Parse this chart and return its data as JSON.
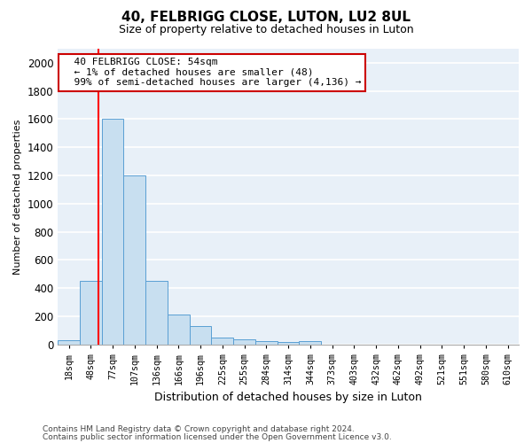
{
  "title": "40, FELBRIGG CLOSE, LUTON, LU2 8UL",
  "subtitle": "Size of property relative to detached houses in Luton",
  "xlabel": "Distribution of detached houses by size in Luton",
  "ylabel": "Number of detached properties",
  "categories": [
    "18sqm",
    "48sqm",
    "77sqm",
    "107sqm",
    "136sqm",
    "166sqm",
    "196sqm",
    "225sqm",
    "255sqm",
    "284sqm",
    "314sqm",
    "344sqm",
    "373sqm",
    "403sqm",
    "432sqm",
    "462sqm",
    "492sqm",
    "521sqm",
    "551sqm",
    "580sqm",
    "610sqm"
  ],
  "values": [
    30,
    450,
    1600,
    1200,
    450,
    210,
    130,
    50,
    35,
    20,
    15,
    20,
    0,
    0,
    0,
    0,
    0,
    0,
    0,
    0,
    0
  ],
  "bar_color": "#c8dff0",
  "bar_edge_color": "#5a9fd4",
  "red_line_x": 1.35,
  "annotation_line1": "  40 FELBRIGG CLOSE: 54sqm",
  "annotation_line2": "  ← 1% of detached houses are smaller (48)",
  "annotation_line3": "  99% of semi-detached houses are larger (4,136) →",
  "annotation_box_color": "#ffffff",
  "annotation_box_edge": "#cc0000",
  "ylim": [
    0,
    2100
  ],
  "yticks": [
    0,
    200,
    400,
    600,
    800,
    1000,
    1200,
    1400,
    1600,
    1800,
    2000
  ],
  "footer_line1": "Contains HM Land Registry data © Crown copyright and database right 2024.",
  "footer_line2": "Contains public sector information licensed under the Open Government Licence v3.0.",
  "fig_bg_color": "#ffffff",
  "plot_bg_color": "#e8f0f8",
  "grid_color": "#ffffff",
  "title_fontsize": 11,
  "subtitle_fontsize": 9
}
